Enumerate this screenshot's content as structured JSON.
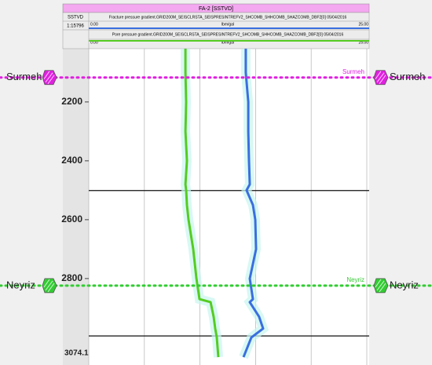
{
  "chart_data": {
    "type": "line",
    "title": "FA-2 [SSTVD]",
    "depth_axis_label": "SSTVD",
    "scale_label": "1:15796",
    "depth": [
      2019,
      2100,
      2200,
      2300,
      2400,
      2480,
      2500,
      2550,
      2600,
      2700,
      2800,
      2870,
      2880,
      2930,
      2970,
      3000,
      3067
    ],
    "ylim": [
      2019,
      3067
    ],
    "yticks": [
      2200,
      2400,
      2600,
      2800
    ],
    "current_depth_label": "3074.1",
    "xlim": [
      0,
      25
    ],
    "xticks": [
      0,
      5,
      10,
      15,
      20,
      25
    ],
    "x_min_label": "0.00",
    "x_max_label": "25.00",
    "x_unit": "lbm/gal",
    "series": [
      {
        "name": "Fracture pressure gradient.GRID200M_SEISCLRSTA_SEISPRESINTREFV2_SHCOMB_SHHCOMB_SHAZCOMB_DBF2[0] 05/04/2016",
        "color": "#3a6fe0",
        "values": [
          14.12,
          14.12,
          14.34,
          14.34,
          14.41,
          14.48,
          14.19,
          14.76,
          14.97,
          15.04,
          14.48,
          14.76,
          14.48,
          15.32,
          15.68,
          14.62,
          13.91
        ]
      },
      {
        "name": "Pore pressure gradient.GRID200M_SEISCLRSTA_SEISPRESINTREFV2_SHCOMB_SHHCOMB_SHAZCOMB_DBF2[0] 05/04/2016",
        "color": "#55cc22",
        "values": [
          8.69,
          8.69,
          8.76,
          8.69,
          8.83,
          8.69,
          8.76,
          8.83,
          8.97,
          9.39,
          9.68,
          9.96,
          10.95,
          11.23,
          11.37,
          11.51,
          11.65
        ]
      }
    ],
    "reference_lines": [
      2501,
      2995
    ],
    "formations": [
      {
        "name": "Surmeh",
        "depth": 2117,
        "color": "#e020e0"
      },
      {
        "name": "Neyriz",
        "depth": 2824,
        "color": "#33cc33"
      }
    ],
    "grid": true
  }
}
